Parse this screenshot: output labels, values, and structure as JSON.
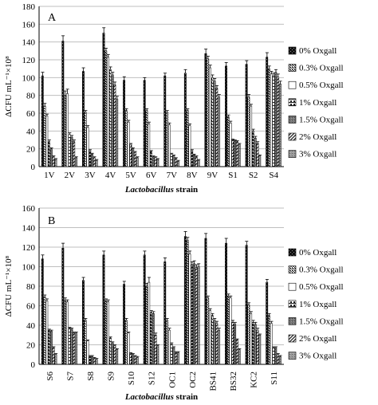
{
  "chart_data": [
    {
      "type": "bar",
      "panel_label": "A",
      "ylabel": "ΔCFU mL⁻¹×10⁸",
      "xlabel_italic": "Lactobacillus",
      "xlabel_rest": "strain",
      "ylim": [
        0,
        180
      ],
      "yticks": [
        0,
        20,
        40,
        60,
        80,
        100,
        120,
        140,
        160,
        180
      ],
      "legend_position": "right",
      "categories": [
        "1V",
        "2V",
        "3V",
        "4V",
        "5V",
        "6V",
        "7V",
        "8V",
        "9V",
        "S1",
        "S2",
        "S4"
      ],
      "series": [
        {
          "name": "0% Oxgall",
          "values": [
            102,
            141,
            107,
            150,
            97,
            97,
            102,
            105,
            127,
            113,
            115,
            123
          ],
          "errors": [
            4,
            6,
            4,
            6,
            4,
            3,
            3,
            4,
            5,
            4,
            4,
            5
          ]
        },
        {
          "name": "0.3% Oxgall",
          "values": [
            68,
            80,
            61,
            130,
            63,
            63,
            61,
            63,
            121,
            56,
            78,
            110
          ],
          "errors": [
            3,
            5,
            2,
            3,
            2,
            2,
            2,
            2,
            3,
            2,
            3,
            3
          ]
        },
        {
          "name": "0.5% Oxgall",
          "values": [
            57,
            82,
            44,
            123,
            50,
            48,
            47,
            46,
            111,
            49,
            68,
            104
          ],
          "errors": [
            2,
            5,
            2,
            3,
            2,
            2,
            2,
            2,
            3,
            2,
            2,
            3
          ]
        },
        {
          "name": "1% Oxgall",
          "values": [
            28,
            36,
            18,
            109,
            25,
            17,
            14,
            18,
            100,
            30,
            40,
            102
          ],
          "errors": [
            2,
            2,
            1,
            3,
            1,
            1,
            1,
            1,
            3,
            1,
            2,
            3
          ]
        },
        {
          "name": "1.5% Oxgall",
          "values": [
            20,
            33,
            14,
            103,
            20,
            11,
            12,
            13,
            96,
            29,
            32,
            106
          ],
          "errors": [
            1,
            2,
            1,
            3,
            1,
            1,
            1,
            1,
            3,
            1,
            2,
            3
          ]
        },
        {
          "name": "2% Oxgall",
          "values": [
            11,
            28,
            10,
            92,
            16,
            10,
            9,
            11,
            88,
            28,
            26,
            101
          ],
          "errors": [
            1,
            2,
            1,
            3,
            1,
            1,
            1,
            1,
            3,
            1,
            2,
            3
          ]
        },
        {
          "name": "3% Oxgall",
          "values": [
            8,
            10,
            7,
            76,
            10,
            8,
            6,
            7,
            78,
            25,
            12,
            93
          ],
          "errors": [
            1,
            1,
            1,
            3,
            1,
            1,
            1,
            1,
            3,
            1,
            1,
            3
          ]
        }
      ]
    },
    {
      "type": "bar",
      "panel_label": "B",
      "ylabel": "ΔCFU mL⁻¹×10⁸",
      "xlabel_italic": "Lactobacillus",
      "xlabel_rest": "strain",
      "ylim": [
        0,
        160
      ],
      "yticks": [
        0,
        20,
        40,
        60,
        80,
        100,
        120,
        140,
        160
      ],
      "legend_position": "right",
      "categories": [
        "S6",
        "S7",
        "S8",
        "S9",
        "S10",
        "S12",
        "OC1",
        "OC2",
        "BS41",
        "BS32",
        "KC2",
        "S11"
      ],
      "series": [
        {
          "name": "0% Oxgall",
          "values": [
            108,
            119,
            86,
            112,
            82,
            112,
            105,
            131,
            129,
            124,
            122,
            84
          ],
          "errors": [
            4,
            5,
            3,
            4,
            3,
            4,
            4,
            5,
            5,
            5,
            4,
            3
          ]
        },
        {
          "name": "0.3% Oxgall",
          "values": [
            69,
            66,
            45,
            65,
            45,
            80,
            45,
            127,
            68,
            70,
            61,
            50
          ],
          "errors": [
            2,
            2,
            2,
            2,
            2,
            3,
            2,
            3,
            2,
            2,
            2,
            2
          ]
        },
        {
          "name": "0.5% Oxgall",
          "values": [
            65,
            64,
            24,
            64,
            32,
            84,
            35,
            113,
            55,
            68,
            52,
            42
          ],
          "errors": [
            2,
            2,
            1,
            2,
            1,
            5,
            2,
            3,
            2,
            2,
            2,
            2
          ]
        },
        {
          "name": "1% Oxgall",
          "values": [
            35,
            37,
            8,
            27,
            11,
            53,
            21,
            102,
            50,
            43,
            43,
            17
          ],
          "errors": [
            1,
            1,
            1,
            1,
            1,
            2,
            1,
            3,
            2,
            2,
            2,
            1
          ]
        },
        {
          "name": "1.5% Oxgall",
          "values": [
            34,
            36,
            8,
            22,
            10,
            52,
            17,
            103,
            45,
            41,
            41,
            17
          ],
          "errors": [
            1,
            1,
            1,
            1,
            1,
            2,
            1,
            3,
            2,
            2,
            2,
            1
          ]
        },
        {
          "name": "2% Oxgall",
          "values": [
            17,
            32,
            6,
            19,
            8,
            30,
            12,
            99,
            42,
            25,
            35,
            10
          ],
          "errors": [
            1,
            1,
            1,
            1,
            1,
            2,
            1,
            3,
            2,
            1,
            2,
            1
          ]
        },
        {
          "name": "3% Oxgall",
          "values": [
            10,
            32,
            5,
            15,
            7,
            19,
            12,
            100,
            35,
            15,
            30,
            8
          ],
          "errors": [
            1,
            1,
            1,
            1,
            1,
            1,
            1,
            3,
            2,
            1,
            1,
            1
          ]
        }
      ]
    }
  ]
}
